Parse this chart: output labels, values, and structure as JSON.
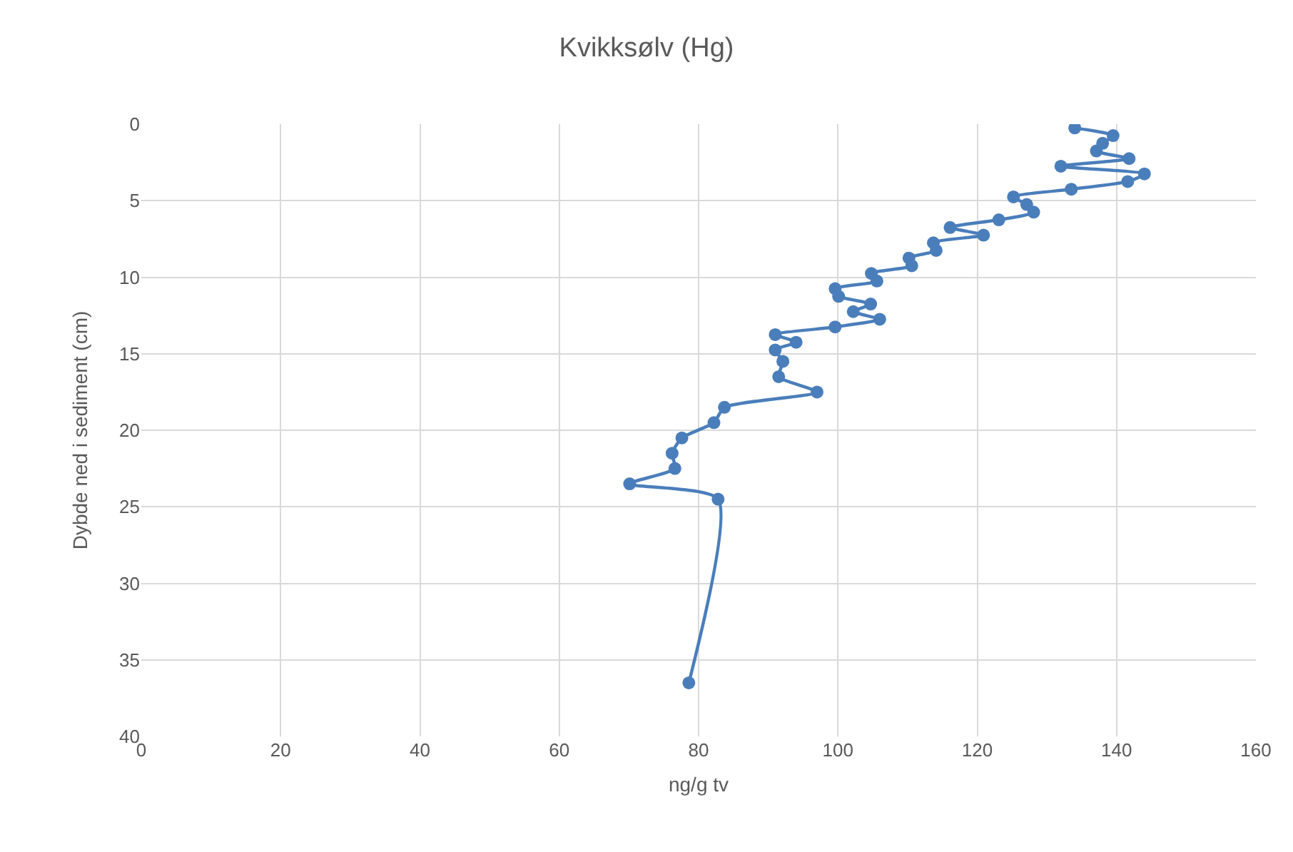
{
  "chart_data": {
    "type": "line",
    "title": "Kvikksølv (Hg)",
    "xlabel": "ng/g tv",
    "ylabel": "Dybde ned i sediment (cm)",
    "x": [
      134.0,
      139.5,
      138.0,
      137.1,
      141.8,
      132.0,
      144.0,
      141.6,
      133.5,
      125.2,
      127.1,
      128.1,
      123.1,
      116.1,
      120.9,
      113.7,
      114.1,
      110.2,
      110.6,
      104.8,
      105.6,
      99.6,
      100.1,
      104.7,
      102.2,
      106.0,
      99.6,
      91.0,
      94.0,
      91.0,
      92.1,
      91.5,
      97.0,
      83.7,
      82.2,
      77.6,
      76.2,
      76.6,
      70.1,
      82.8,
      78.6
    ],
    "values": [
      0.25,
      0.75,
      1.25,
      1.75,
      2.25,
      2.75,
      3.25,
      3.75,
      4.25,
      4.75,
      5.25,
      5.75,
      6.25,
      6.75,
      7.25,
      7.75,
      8.25,
      8.75,
      9.25,
      9.75,
      10.25,
      10.75,
      11.25,
      11.75,
      12.25,
      12.75,
      13.25,
      13.75,
      14.25,
      14.75,
      15.5,
      16.5,
      17.5,
      18.5,
      19.5,
      20.5,
      21.5,
      22.5,
      23.5,
      24.5,
      36.5
    ],
    "color": "#4a7ebb",
    "marker": "circle",
    "line_style": "solid",
    "grid": true,
    "xlim": [
      0,
      160
    ],
    "xticks": [
      0,
      20,
      40,
      60,
      80,
      100,
      120,
      140,
      160
    ],
    "ylim": [
      40,
      0
    ],
    "yticks": [
      0,
      5,
      10,
      15,
      20,
      25,
      30,
      35,
      40
    ]
  }
}
